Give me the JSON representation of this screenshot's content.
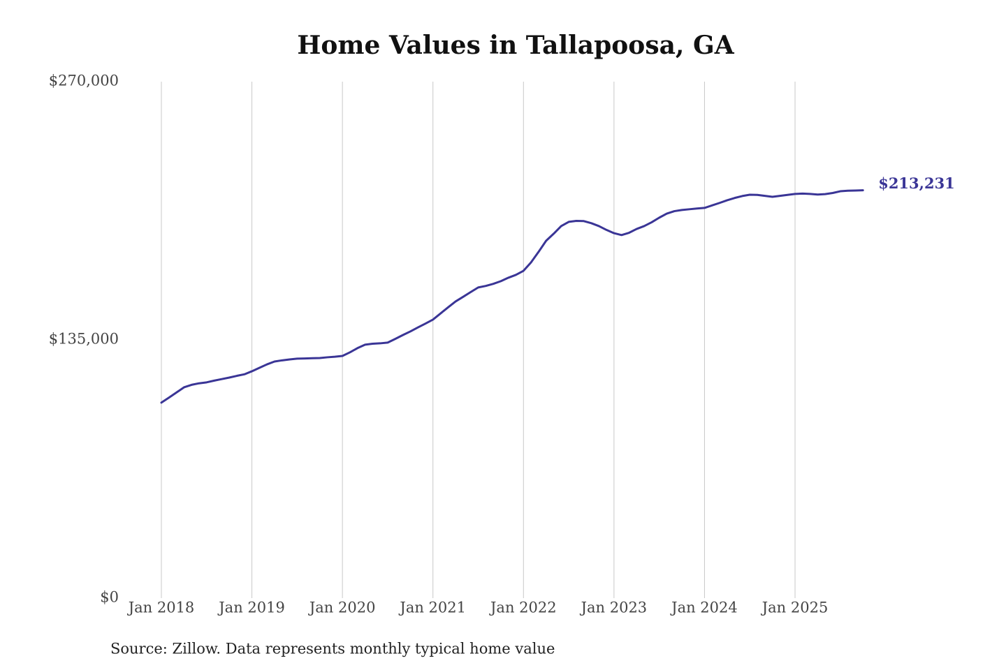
{
  "chart_data": {
    "type": "line",
    "title": "Home Values in Tallapoosa, GA",
    "source": "Source: Zillow. Data represents monthly typical home value",
    "x": [
      "2018-01",
      "2018-02",
      "2018-03",
      "2018-04",
      "2018-05",
      "2018-06",
      "2018-07",
      "2018-08",
      "2018-09",
      "2018-10",
      "2018-11",
      "2018-12",
      "2019-01",
      "2019-02",
      "2019-03",
      "2019-04",
      "2019-05",
      "2019-06",
      "2019-07",
      "2019-08",
      "2019-09",
      "2019-10",
      "2019-11",
      "2019-12",
      "2020-01",
      "2020-02",
      "2020-03",
      "2020-04",
      "2020-05",
      "2020-06",
      "2020-07",
      "2020-08",
      "2020-09",
      "2020-10",
      "2020-11",
      "2020-12",
      "2021-01",
      "2021-02",
      "2021-03",
      "2021-04",
      "2021-05",
      "2021-06",
      "2021-07",
      "2021-08",
      "2021-09",
      "2021-10",
      "2021-11",
      "2021-12",
      "2022-01",
      "2022-02",
      "2022-03",
      "2022-04",
      "2022-05",
      "2022-06",
      "2022-07",
      "2022-08",
      "2022-09",
      "2022-10",
      "2022-11",
      "2022-12",
      "2023-01",
      "2023-02",
      "2023-03",
      "2023-04",
      "2023-05",
      "2023-06",
      "2023-07",
      "2023-08",
      "2023-09",
      "2023-10",
      "2023-11",
      "2023-12",
      "2024-01",
      "2024-02",
      "2024-03",
      "2024-04",
      "2024-05",
      "2024-06",
      "2024-07",
      "2024-08",
      "2024-09",
      "2024-10",
      "2024-11",
      "2024-12",
      "2025-01",
      "2025-02",
      "2025-03",
      "2025-04",
      "2025-05",
      "2025-06",
      "2025-07",
      "2025-08",
      "2025-09",
      "2025-10"
    ],
    "xticks": [
      {
        "value": "2018-01",
        "label": "Jan 2018"
      },
      {
        "value": "2019-01",
        "label": "Jan 2019"
      },
      {
        "value": "2020-01",
        "label": "Jan 2020"
      },
      {
        "value": "2021-01",
        "label": "Jan 2021"
      },
      {
        "value": "2022-01",
        "label": "Jan 2022"
      },
      {
        "value": "2023-01",
        "label": "Jan 2023"
      },
      {
        "value": "2024-01",
        "label": "Jan 2024"
      },
      {
        "value": "2025-01",
        "label": "Jan 2025"
      }
    ],
    "ylim": [
      0,
      270000
    ],
    "yticks": [
      {
        "value": 0,
        "label": "$0"
      },
      {
        "value": 135000,
        "label": "$135,000"
      },
      {
        "value": 270000,
        "label": "$270,000"
      }
    ],
    "grid": "x",
    "series": [
      {
        "color": "#3a3596",
        "values": [
          102200,
          104800,
          107500,
          110200,
          111500,
          112300,
          112800,
          113700,
          114500,
          115300,
          116200,
          117000,
          118600,
          120400,
          122200,
          123700,
          124300,
          124800,
          125200,
          125300,
          125400,
          125500,
          125900,
          126200,
          126600,
          128500,
          130700,
          132500,
          133000,
          133200,
          133600,
          135500,
          137500,
          139400,
          141500,
          143500,
          145600,
          148800,
          152000,
          155100,
          157500,
          160000,
          162400,
          163200,
          164300,
          165700,
          167500,
          169000,
          171100,
          175500,
          181000,
          186800,
          190500,
          194500,
          196700,
          197200,
          197100,
          196000,
          194500,
          192500,
          190800,
          189800,
          191000,
          193000,
          194500,
          196500,
          198900,
          201000,
          202300,
          202900,
          203300,
          203700,
          204000,
          205300,
          206600,
          208000,
          209200,
          210200,
          210900,
          210800,
          210300,
          209800,
          210300,
          210800,
          211300,
          211500,
          211300,
          211000,
          211200,
          211800,
          212700,
          213000,
          213100,
          213231
        ],
        "value_labels": [
          null,
          null,
          null,
          null,
          null,
          null,
          null,
          null,
          null,
          null,
          null,
          null,
          null,
          null,
          null,
          null,
          null,
          null,
          null,
          null,
          null,
          null,
          null,
          null,
          null,
          null,
          null,
          null,
          null,
          null,
          null,
          null,
          null,
          null,
          null,
          null,
          null,
          null,
          null,
          null,
          null,
          null,
          null,
          null,
          null,
          null,
          null,
          null,
          null,
          null,
          null,
          null,
          null,
          null,
          null,
          null,
          null,
          null,
          null,
          null,
          null,
          null,
          null,
          null,
          null,
          null,
          null,
          null,
          null,
          null,
          null,
          null,
          null,
          null,
          null,
          null,
          null,
          null,
          null,
          null,
          null,
          null,
          null,
          null,
          null,
          null,
          null,
          null,
          null,
          null,
          null,
          null,
          null,
          "$213,231"
        ]
      }
    ]
  }
}
